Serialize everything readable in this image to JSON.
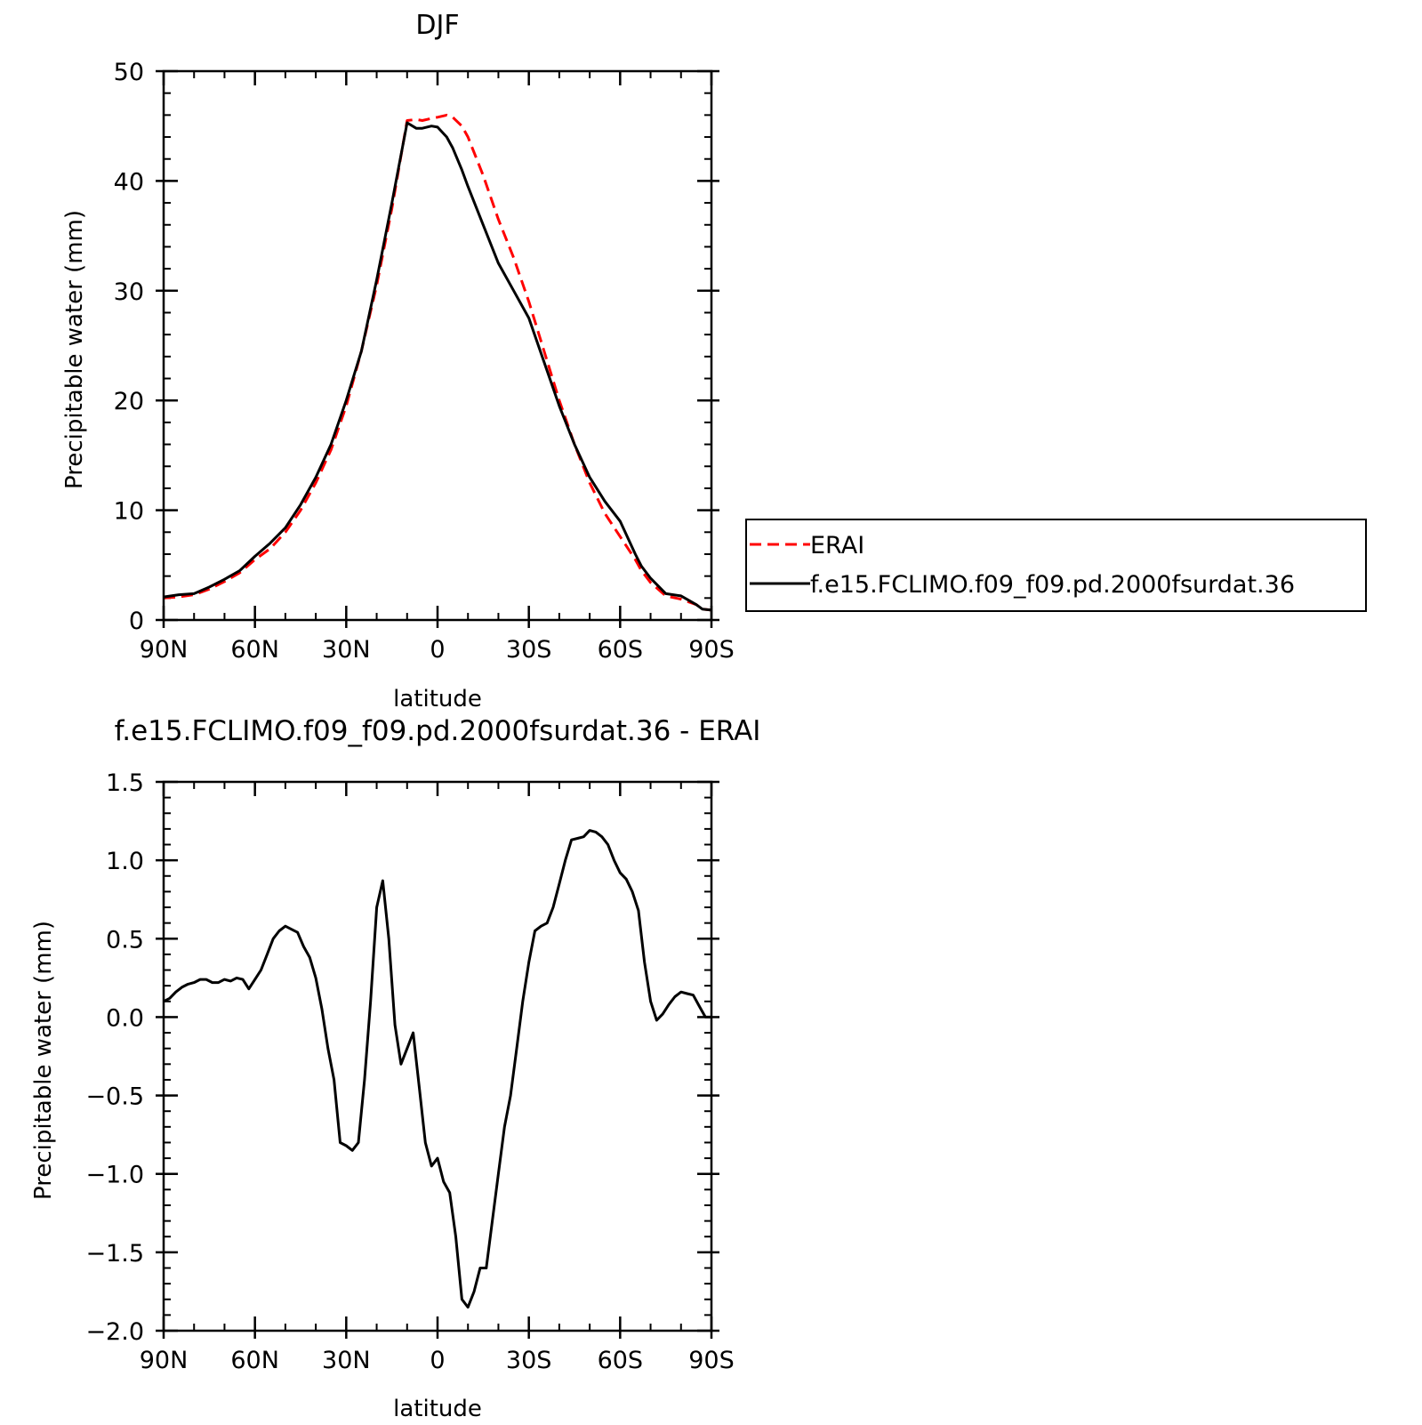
{
  "chart_data": [
    {
      "type": "line",
      "title": "DJF",
      "xlabel": "latitude",
      "ylabel": "Precipitable water (mm)",
      "xlim": [
        90,
        -90
      ],
      "ylim": [
        0,
        50
      ],
      "x_ticks": [
        90,
        60,
        30,
        0,
        -30,
        -60,
        -90
      ],
      "x_tick_labels": [
        "90N",
        "60N",
        "30N",
        "0",
        "30S",
        "60S",
        "90S"
      ],
      "y_ticks": [
        0,
        10,
        20,
        30,
        40,
        50
      ],
      "y_tick_labels": [
        "0",
        "10",
        "20",
        "30",
        "40",
        "50"
      ],
      "x_minor_step": 10,
      "y_minor_step": 2,
      "legend_position": "right",
      "series": [
        {
          "name": "ERAI",
          "color": "#ff0000",
          "dash": "dashed",
          "x": [
            90,
            85,
            80,
            75,
            70,
            65,
            60,
            55,
            50,
            45,
            40,
            35,
            30,
            25,
            20,
            15,
            10,
            7,
            5,
            2,
            0,
            -3,
            -5,
            -8,
            -10,
            -15,
            -20,
            -25,
            -30,
            -35,
            -40,
            -45,
            -50,
            -55,
            -60,
            -65,
            -67,
            -70,
            -75,
            -80,
            -85,
            -87,
            -90
          ],
          "y": [
            2.0,
            2.1,
            2.3,
            2.8,
            3.5,
            4.3,
            5.5,
            6.5,
            8.0,
            10.0,
            12.5,
            15.5,
            19.5,
            24.5,
            30.5,
            37.5,
            45.5,
            45.6,
            45.5,
            45.7,
            45.8,
            46.0,
            45.8,
            45.0,
            44.0,
            40.5,
            36.5,
            33.0,
            29.0,
            24.5,
            20.0,
            16.0,
            12.5,
            9.7,
            7.6,
            5.5,
            4.5,
            3.4,
            2.2,
            1.9,
            1.4,
            1.0,
            0.9
          ]
        },
        {
          "name": "f.e15.FCLIMO.f09_f09.pd.2000fsurdat.36",
          "color": "#000000",
          "dash": "solid",
          "x": [
            90,
            85,
            80,
            75,
            70,
            65,
            60,
            55,
            50,
            45,
            40,
            35,
            30,
            25,
            20,
            15,
            10,
            7,
            5,
            2,
            0,
            -3,
            -5,
            -8,
            -10,
            -15,
            -20,
            -25,
            -30,
            -35,
            -40,
            -45,
            -50,
            -55,
            -60,
            -65,
            -67,
            -70,
            -75,
            -80,
            -85,
            -87,
            -90
          ],
          "y": [
            2.1,
            2.3,
            2.4,
            3.0,
            3.7,
            4.5,
            5.8,
            7.0,
            8.4,
            10.5,
            13.0,
            16.0,
            20.0,
            24.5,
            31.0,
            38.0,
            45.3,
            44.8,
            44.8,
            45.0,
            44.9,
            44.0,
            43.0,
            41.0,
            39.5,
            36.0,
            32.5,
            30.0,
            27.5,
            23.5,
            19.5,
            16.0,
            13.0,
            10.8,
            9.0,
            6.0,
            4.9,
            3.8,
            2.4,
            2.2,
            1.4,
            1.0,
            0.9
          ]
        }
      ]
    },
    {
      "type": "line",
      "title": "f.e15.FCLIMO.f09_f09.pd.2000fsurdat.36 - ERAI",
      "xlabel": "latitude",
      "ylabel": "Precipitable water (mm)",
      "xlim": [
        90,
        -90
      ],
      "ylim": [
        -2.0,
        1.5
      ],
      "x_ticks": [
        90,
        60,
        30,
        0,
        -30,
        -60,
        -90
      ],
      "x_tick_labels": [
        "90N",
        "60N",
        "30N",
        "0",
        "30S",
        "60S",
        "90S"
      ],
      "y_ticks": [
        -2.0,
        -1.5,
        -1.0,
        -0.5,
        0.0,
        0.5,
        1.0,
        1.5
      ],
      "y_tick_labels": [
        "−2.0",
        "−1.5",
        "−1.0",
        "−0.5",
        "0.0",
        "0.5",
        "1.0",
        "1.5"
      ],
      "x_minor_step": 10,
      "y_minor_step": 0.1,
      "series": [
        {
          "color": "#000000",
          "dash": "solid",
          "x": [
            90,
            88,
            86,
            84,
            82,
            80,
            78,
            76,
            74,
            72,
            70,
            68,
            66,
            64,
            62,
            60,
            58,
            56,
            54,
            52,
            50,
            48,
            46,
            44,
            42,
            40,
            38,
            36,
            34,
            32,
            30,
            28,
            26,
            24,
            22,
            20,
            18,
            16,
            14,
            12,
            10,
            8,
            6,
            4,
            2,
            0,
            -2,
            -4,
            -6,
            -8,
            -10,
            -12,
            -14,
            -16,
            -18,
            -20,
            -22,
            -24,
            -26,
            -28,
            -30,
            -32,
            -34,
            -36,
            -38,
            -40,
            -42,
            -44,
            -46,
            -48,
            -50,
            -52,
            -54,
            -56,
            -58,
            -60,
            -62,
            -64,
            -66,
            -68,
            -70,
            -72,
            -74,
            -76,
            -78,
            -80,
            -82,
            -84,
            -86,
            -88,
            -90
          ],
          "y": [
            0.1,
            0.12,
            0.16,
            0.19,
            0.21,
            0.22,
            0.24,
            0.24,
            0.22,
            0.22,
            0.24,
            0.23,
            0.25,
            0.24,
            0.18,
            0.24,
            0.3,
            0.4,
            0.5,
            0.55,
            0.58,
            0.56,
            0.54,
            0.45,
            0.38,
            0.25,
            0.05,
            -0.2,
            -0.4,
            -0.8,
            -0.82,
            -0.85,
            -0.8,
            -0.4,
            0.1,
            0.7,
            0.87,
            0.5,
            -0.05,
            -0.3,
            -0.2,
            -0.1,
            -0.45,
            -0.8,
            -0.95,
            -0.9,
            -1.05,
            -1.12,
            -1.4,
            -1.8,
            -1.85,
            -1.75,
            -1.6,
            -1.6,
            -1.3,
            -1.0,
            -0.7,
            -0.5,
            -0.2,
            0.1,
            0.35,
            0.55,
            0.58,
            0.6,
            0.7,
            0.85,
            1.0,
            1.13,
            1.14,
            1.15,
            1.19,
            1.18,
            1.15,
            1.1,
            1.0,
            0.92,
            0.88,
            0.8,
            0.68,
            0.35,
            0.1,
            -0.02,
            0.02,
            0.08,
            0.13,
            0.16,
            0.15,
            0.14,
            0.07,
            0.0,
            0.0
          ]
        }
      ]
    }
  ]
}
